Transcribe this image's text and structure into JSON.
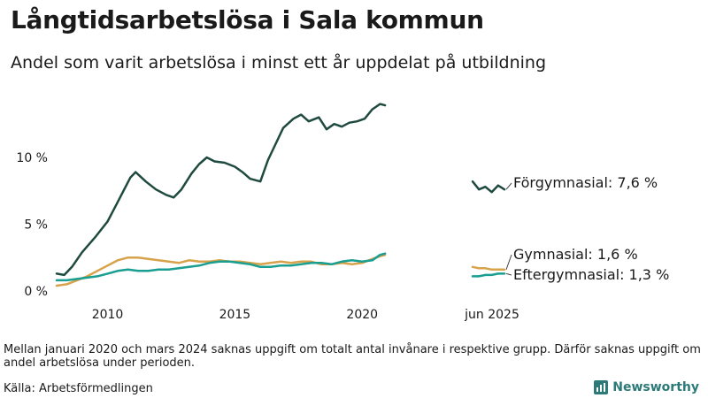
{
  "header": {
    "title": "Långtidsarbetslösa i Sala kommun",
    "subtitle": "Andel som varit arbetslösa i minst ett år uppdelat på utbildning"
  },
  "footer": {
    "note": "Mellan januari 2020 och mars 2024 saknas uppgift om totalt antal invånare i respektive grupp. Därför saknas uppgift om andel arbetslösa under perioden.",
    "source": "Källa: Arbetsförmedlingen",
    "brand": "Newsworthy"
  },
  "chart_data": {
    "type": "line",
    "y_unit": "%",
    "ylim": [
      0,
      14.5
    ],
    "xlim": [
      2008.0,
      2021.0
    ],
    "y_ticks": [
      {
        "value": 0,
        "label": "0 %"
      },
      {
        "value": 5,
        "label": "5 %"
      },
      {
        "value": 10,
        "label": "10 %"
      }
    ],
    "x_ticks": [
      {
        "value": 2010,
        "label": "2010"
      },
      {
        "value": 2015,
        "label": "2015"
      },
      {
        "value": 2020,
        "label": "2020"
      }
    ],
    "recent_period_label": "jun 2025",
    "grid": false,
    "colors": {
      "forgymnasial": "#1f4a3f",
      "gymnasial": "#d7a24a",
      "eftergymnasial": "#199e91"
    },
    "series": [
      {
        "key": "forgymnasial",
        "label": "Förgymnasial: 7,6 %",
        "x": [
          2008.0,
          2008.3,
          2008.6,
          2009.0,
          2009.5,
          2010.0,
          2010.3,
          2010.6,
          2010.9,
          2011.1,
          2011.5,
          2011.9,
          2012.3,
          2012.6,
          2012.9,
          2013.3,
          2013.6,
          2013.9,
          2014.2,
          2014.6,
          2015.0,
          2015.3,
          2015.6,
          2016.0,
          2016.3,
          2016.6,
          2016.9,
          2017.3,
          2017.6,
          2017.9,
          2018.3,
          2018.6,
          2018.9,
          2019.2,
          2019.5,
          2019.8,
          2020.1,
          2020.4,
          2020.7,
          2020.9
        ],
        "y": [
          1.3,
          1.2,
          1.8,
          2.9,
          4.0,
          5.2,
          6.3,
          7.4,
          8.5,
          8.9,
          8.2,
          7.6,
          7.2,
          7.0,
          7.6,
          8.8,
          9.5,
          10.0,
          9.7,
          9.6,
          9.3,
          8.9,
          8.4,
          8.2,
          9.8,
          11.0,
          12.2,
          12.9,
          13.2,
          12.7,
          13.0,
          12.1,
          12.5,
          12.3,
          12.6,
          12.7,
          12.9,
          13.6,
          14.0,
          13.9
        ],
        "recent": [
          8.2,
          7.6,
          7.8,
          7.4,
          7.9,
          7.6
        ]
      },
      {
        "key": "gymnasial",
        "label": "Gymnasial: 1,6 %",
        "x": [
          2008.0,
          2008.4,
          2008.8,
          2009.2,
          2009.6,
          2010.0,
          2010.4,
          2010.8,
          2011.2,
          2011.6,
          2012.0,
          2012.4,
          2012.8,
          2013.2,
          2013.6,
          2014.0,
          2014.4,
          2014.8,
          2015.2,
          2015.6,
          2016.0,
          2016.4,
          2016.8,
          2017.2,
          2017.6,
          2018.0,
          2018.4,
          2018.8,
          2019.2,
          2019.6,
          2020.0,
          2020.4,
          2020.7,
          2020.9
        ],
        "y": [
          0.4,
          0.5,
          0.8,
          1.1,
          1.5,
          1.9,
          2.3,
          2.5,
          2.5,
          2.4,
          2.3,
          2.2,
          2.1,
          2.3,
          2.2,
          2.2,
          2.3,
          2.2,
          2.2,
          2.1,
          2.0,
          2.1,
          2.2,
          2.1,
          2.2,
          2.2,
          2.0,
          2.0,
          2.1,
          2.0,
          2.1,
          2.4,
          2.6,
          2.7
        ],
        "recent": [
          1.8,
          1.7,
          1.7,
          1.6,
          1.6,
          1.6
        ]
      },
      {
        "key": "eftergymnasial",
        "label": "Eftergymnasial: 1,3 %",
        "x": [
          2008.0,
          2008.4,
          2008.8,
          2009.2,
          2009.6,
          2010.0,
          2010.4,
          2010.8,
          2011.2,
          2011.6,
          2012.0,
          2012.4,
          2012.8,
          2013.2,
          2013.6,
          2014.0,
          2014.4,
          2014.8,
          2015.2,
          2015.6,
          2016.0,
          2016.4,
          2016.8,
          2017.2,
          2017.6,
          2018.0,
          2018.4,
          2018.8,
          2019.2,
          2019.6,
          2020.0,
          2020.4,
          2020.7,
          2020.9
        ],
        "y": [
          0.8,
          0.8,
          0.9,
          1.0,
          1.1,
          1.3,
          1.5,
          1.6,
          1.5,
          1.5,
          1.6,
          1.6,
          1.7,
          1.8,
          1.9,
          2.1,
          2.2,
          2.2,
          2.1,
          2.0,
          1.8,
          1.8,
          1.9,
          1.9,
          2.0,
          2.1,
          2.1,
          2.0,
          2.2,
          2.3,
          2.2,
          2.3,
          2.7,
          2.8
        ],
        "recent": [
          1.1,
          1.1,
          1.2,
          1.2,
          1.3,
          1.3
        ]
      }
    ]
  }
}
